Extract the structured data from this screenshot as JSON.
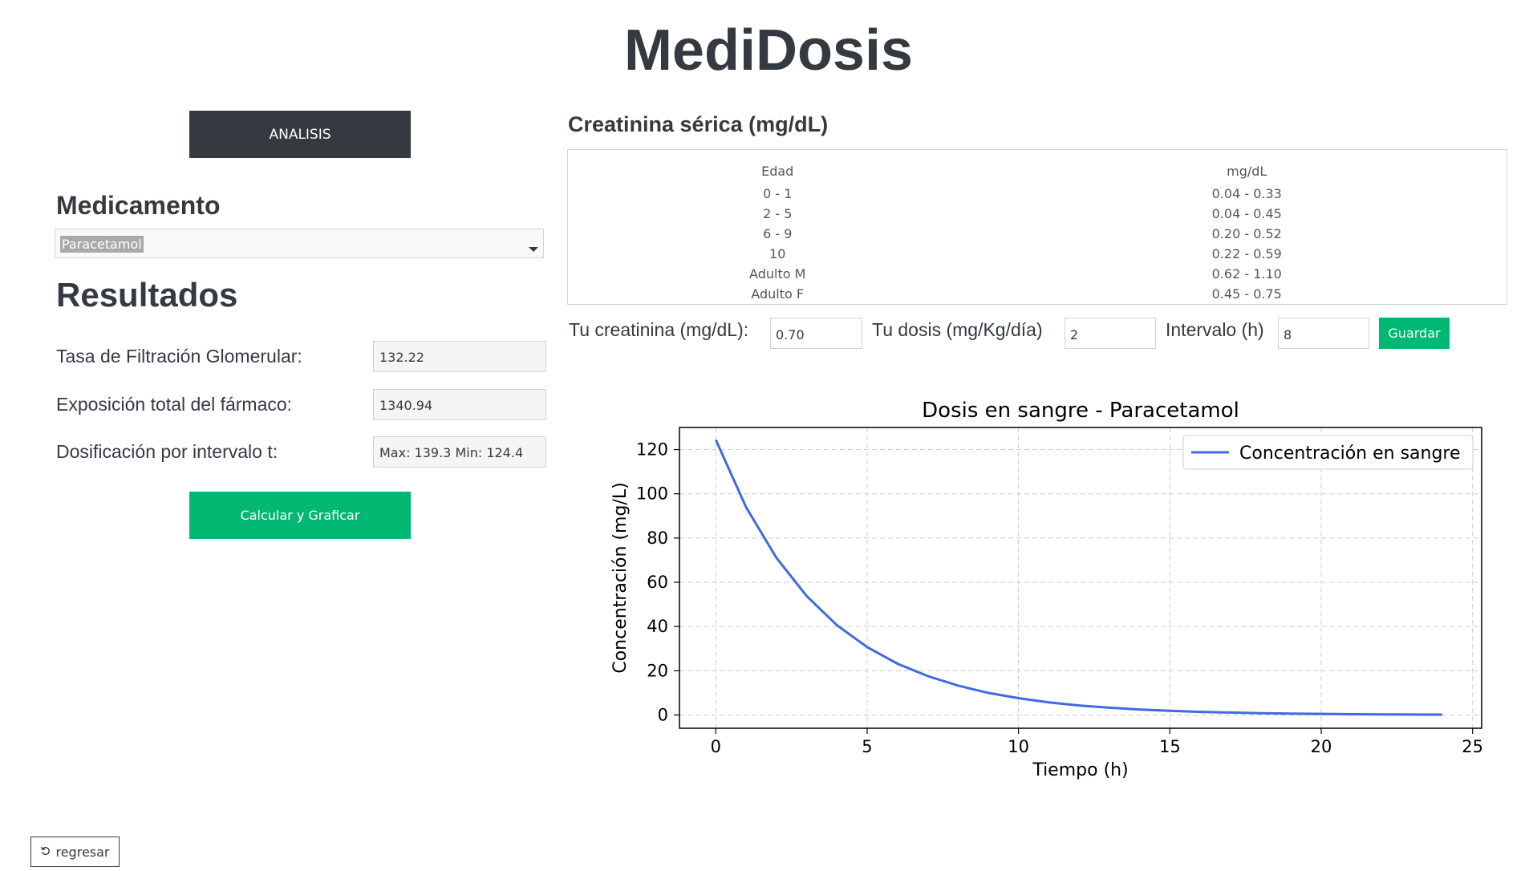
{
  "app": {
    "title": "MediDosis"
  },
  "left": {
    "analisis_button": "ANALISIS",
    "medicamento_heading": "Medicamento",
    "medicamento_selected": "Paracetamol",
    "resultados_heading": "Resultados",
    "results": [
      {
        "label": "Tasa de Filtración Glomerular:",
        "value": "132.22"
      },
      {
        "label": "Exposición total del fármaco:",
        "value": "1340.94"
      },
      {
        "label": "Dosificación por intervalo t:",
        "value": "Max: 139.3 Min: 124.4"
      }
    ],
    "calcular_button": "Calcular y Graficar",
    "regresar_button": "regresar",
    "regresar_icon": "undo-icon"
  },
  "creatinina": {
    "title": "Creatinina sérica (mg/dL)",
    "headers": [
      "Edad",
      "mg/dL"
    ],
    "rows": [
      [
        "0 - 1",
        "0.04 - 0.33"
      ],
      [
        "2 - 5",
        "0.04 - 0.45"
      ],
      [
        "6 - 9",
        "0.20 - 0.52"
      ],
      [
        "10",
        "0.22 - 0.59"
      ],
      [
        "Adulto M",
        "0.62 - 1.10"
      ],
      [
        "Adulto F",
        "0.45 - 0.75"
      ]
    ]
  },
  "form": {
    "creatinina_label": "Tu creatinina (mg/dL):",
    "creatinina_value": "0.70",
    "dosis_label": "Tu dosis (mg/Kg/día)",
    "dosis_value": "2",
    "intervalo_label": "Intervalo (h)",
    "intervalo_value": "8",
    "guardar_button": "Guardar"
  },
  "colors": {
    "dark": "#343a40",
    "green": "#00b871",
    "line": "#4169e1"
  },
  "chart_data": {
    "type": "line",
    "title": "Dosis en sangre - Paracetamol",
    "xlabel": "Tiempo (h)",
    "ylabel": "Concentración (mg/L)",
    "xlim": [
      -1.2,
      25.3
    ],
    "ylim": [
      -6,
      130
    ],
    "xticks": [
      0,
      5,
      10,
      15,
      20,
      25
    ],
    "yticks": [
      0,
      20,
      40,
      60,
      80,
      100,
      120
    ],
    "grid": true,
    "legend": "top-right",
    "series": [
      {
        "name": "Concentración en sangre",
        "x": [
          0,
          1,
          2,
          3,
          4,
          5,
          6,
          7,
          8,
          9,
          10,
          11,
          12,
          13,
          14,
          15,
          16,
          17,
          18,
          19,
          20,
          21,
          22,
          23,
          24
        ],
        "y": [
          124.4,
          94.0,
          71.1,
          53.8,
          40.6,
          30.7,
          23.2,
          17.6,
          13.3,
          10.0,
          7.6,
          5.7,
          4.3,
          3.3,
          2.5,
          1.9,
          1.4,
          1.1,
          0.8,
          0.6,
          0.5,
          0.35,
          0.27,
          0.2,
          0.15
        ]
      }
    ]
  }
}
